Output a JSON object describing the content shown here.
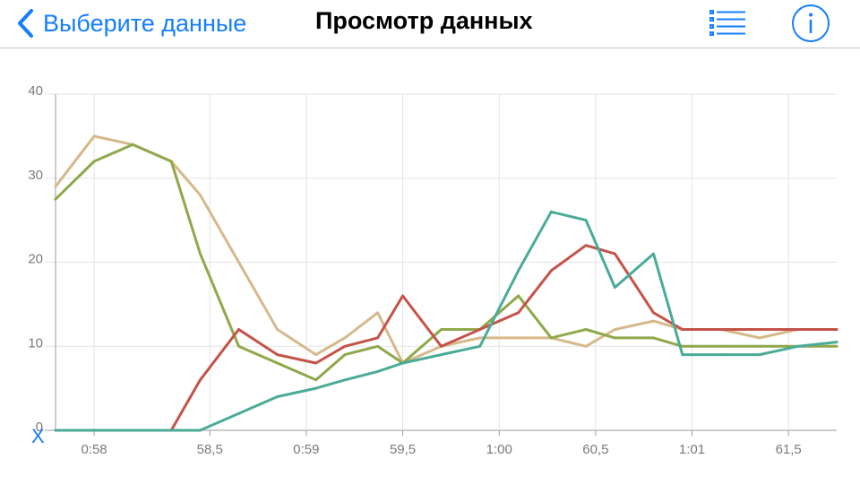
{
  "navbar": {
    "back_label": "Выберите данные",
    "title": "Просмотр данных",
    "list_icon": "list-icon",
    "info_icon": "info-icon",
    "accent": "#157efb"
  },
  "chart_data": {
    "type": "line",
    "x_marker": "X",
    "ylim": [
      0,
      40
    ],
    "y_ticks": [
      "0",
      "10",
      "20",
      "30",
      "40"
    ],
    "x_ticks": [
      {
        "label": "0:58",
        "x": 57.9
      },
      {
        "label": "58,5",
        "x": 58.5
      },
      {
        "label": "0:59",
        "x": 59.0
      },
      {
        "label": "59,5",
        "x": 59.5
      },
      {
        "label": "1:00",
        "x": 60.0
      },
      {
        "label": "60,5",
        "x": 60.5
      },
      {
        "label": "1:01",
        "x": 61.0
      },
      {
        "label": "61,5",
        "x": 61.5
      }
    ],
    "xlim": [
      57.7,
      61.75
    ],
    "grid": true,
    "series": [
      {
        "color": "#d6b98a",
        "points": [
          [
            57.7,
            29
          ],
          [
            57.9,
            35
          ],
          [
            58.1,
            34
          ],
          [
            58.3,
            32
          ],
          [
            58.45,
            28
          ],
          [
            58.65,
            20
          ],
          [
            58.85,
            12
          ],
          [
            59.05,
            9
          ],
          [
            59.2,
            11
          ],
          [
            59.37,
            14
          ],
          [
            59.5,
            8
          ],
          [
            59.7,
            10
          ],
          [
            59.9,
            11
          ],
          [
            60.1,
            11
          ],
          [
            60.27,
            11
          ],
          [
            60.45,
            10
          ],
          [
            60.6,
            12
          ],
          [
            60.8,
            13
          ],
          [
            60.95,
            12
          ],
          [
            61.15,
            12
          ],
          [
            61.35,
            11
          ],
          [
            61.55,
            12
          ],
          [
            61.75,
            12
          ]
        ]
      },
      {
        "color": "#8fa84a",
        "points": [
          [
            57.7,
            27.5
          ],
          [
            57.9,
            32
          ],
          [
            58.1,
            34
          ],
          [
            58.3,
            32
          ],
          [
            58.45,
            21
          ],
          [
            58.65,
            10
          ],
          [
            58.85,
            8
          ],
          [
            59.05,
            6
          ],
          [
            59.2,
            9
          ],
          [
            59.37,
            10
          ],
          [
            59.5,
            8
          ],
          [
            59.7,
            12
          ],
          [
            59.9,
            12
          ],
          [
            60.1,
            16
          ],
          [
            60.27,
            11
          ],
          [
            60.45,
            12
          ],
          [
            60.6,
            11
          ],
          [
            60.8,
            11
          ],
          [
            60.95,
            10
          ],
          [
            61.15,
            10
          ],
          [
            61.35,
            10
          ],
          [
            61.55,
            10
          ],
          [
            61.75,
            10
          ]
        ]
      },
      {
        "color": "#c4534a",
        "points": [
          [
            57.7,
            0
          ],
          [
            57.9,
            0
          ],
          [
            58.1,
            0
          ],
          [
            58.3,
            0
          ],
          [
            58.45,
            6
          ],
          [
            58.65,
            12
          ],
          [
            58.85,
            9
          ],
          [
            59.05,
            8
          ],
          [
            59.2,
            10
          ],
          [
            59.37,
            11
          ],
          [
            59.5,
            16
          ],
          [
            59.7,
            10
          ],
          [
            59.9,
            12
          ],
          [
            60.1,
            14
          ],
          [
            60.27,
            19
          ],
          [
            60.45,
            22
          ],
          [
            60.6,
            21
          ],
          [
            60.8,
            14
          ],
          [
            60.95,
            12
          ],
          [
            61.15,
            12
          ],
          [
            61.35,
            12
          ],
          [
            61.55,
            12
          ],
          [
            61.75,
            12
          ]
        ]
      },
      {
        "color": "#4aab98",
        "points": [
          [
            57.7,
            0
          ],
          [
            57.9,
            0
          ],
          [
            58.1,
            0
          ],
          [
            58.3,
            0
          ],
          [
            58.45,
            0
          ],
          [
            58.65,
            2
          ],
          [
            58.85,
            4
          ],
          [
            59.05,
            5
          ],
          [
            59.2,
            6
          ],
          [
            59.37,
            7
          ],
          [
            59.5,
            8
          ],
          [
            59.7,
            9
          ],
          [
            59.9,
            10
          ],
          [
            60.1,
            19
          ],
          [
            60.27,
            26
          ],
          [
            60.45,
            25
          ],
          [
            60.6,
            17
          ],
          [
            60.8,
            21
          ],
          [
            60.95,
            9
          ],
          [
            61.15,
            9
          ],
          [
            61.35,
            9
          ],
          [
            61.55,
            10
          ],
          [
            61.75,
            10.5
          ]
        ]
      }
    ]
  }
}
